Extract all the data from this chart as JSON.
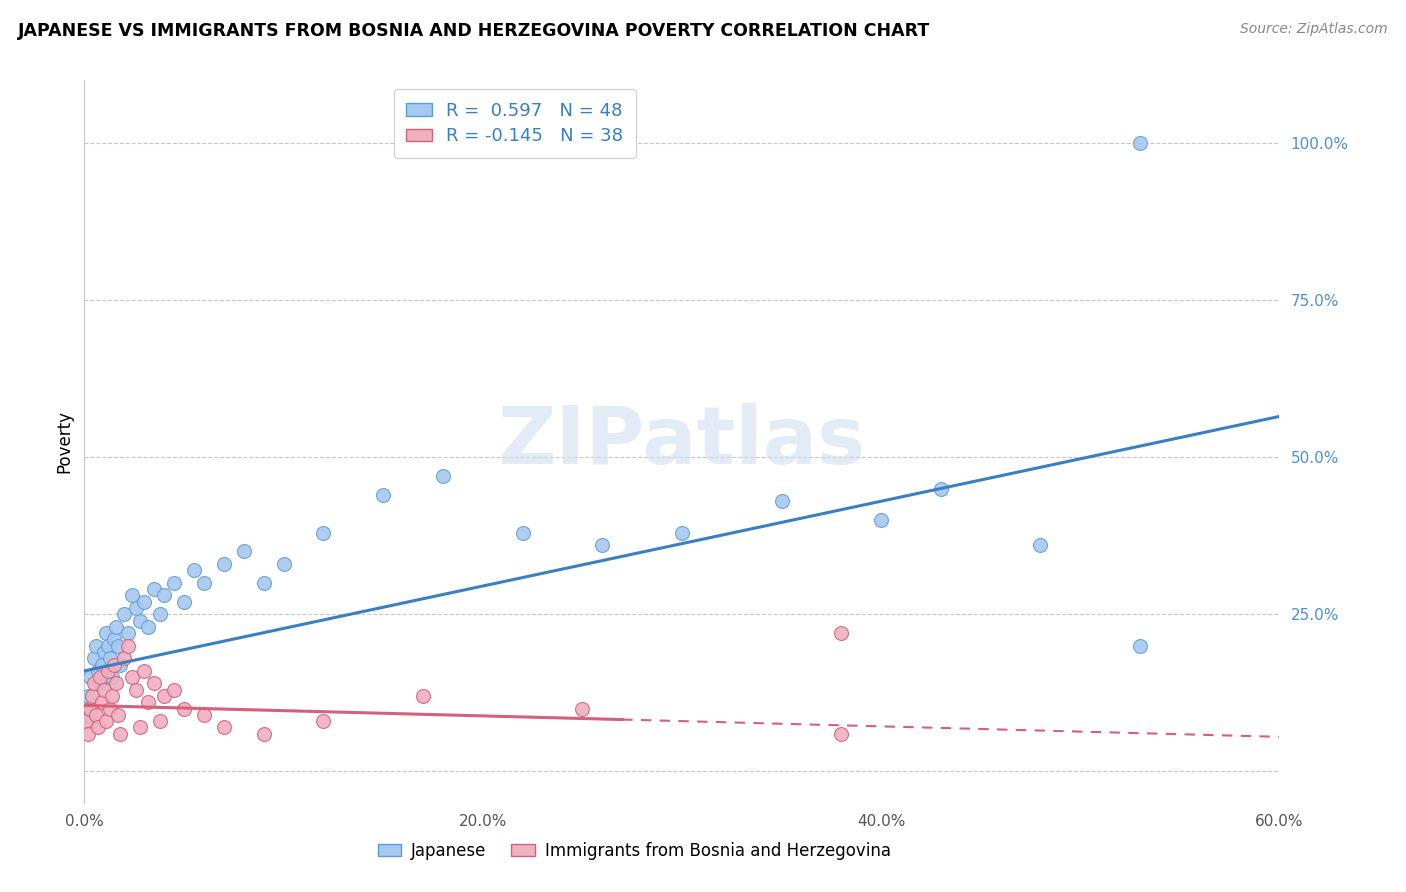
{
  "title": "JAPANESE VS IMMIGRANTS FROM BOSNIA AND HERZEGOVINA POVERTY CORRELATION CHART",
  "source": "Source: ZipAtlas.com",
  "ylabel": "Poverty",
  "xlim": [
    0.0,
    0.6
  ],
  "ylim": [
    -0.05,
    1.1
  ],
  "xtick_positions": [
    0.0,
    0.1,
    0.2,
    0.3,
    0.4,
    0.5,
    0.6
  ],
  "xticklabels": [
    "0.0%",
    "",
    "20.0%",
    "",
    "40.0%",
    "",
    "60.0%"
  ],
  "ytick_positions": [
    0.0,
    0.25,
    0.5,
    0.75,
    1.0
  ],
  "ytick_labels": [
    "",
    "25.0%",
    "50.0%",
    "75.0%",
    "100.0%"
  ],
  "japanese_scatter_color": "#a8c8f0",
  "japanese_scatter_edge": "#5a9fd4",
  "bosnian_scatter_color": "#f0b0c0",
  "bosnian_scatter_edge": "#d4607a",
  "japanese_line_color": "#3a7fc1",
  "bosnian_line_color": "#d4607a",
  "R_japanese": 0.597,
  "N_japanese": 48,
  "R_bosnian": -0.145,
  "N_bosnian": 38,
  "watermark_text": "ZIPatlas",
  "legend_label_japanese": "Japanese",
  "legend_label_bosnian": "Immigrants from Bosnia and Herzegovina",
  "japanese_x": [
    0.001,
    0.002,
    0.003,
    0.004,
    0.005,
    0.006,
    0.007,
    0.008,
    0.009,
    0.01,
    0.011,
    0.012,
    0.013,
    0.014,
    0.015,
    0.016,
    0.017,
    0.018,
    0.02,
    0.022,
    0.024,
    0.026,
    0.028,
    0.03,
    0.032,
    0.035,
    0.038,
    0.04,
    0.045,
    0.05,
    0.055,
    0.06,
    0.07,
    0.08,
    0.09,
    0.1,
    0.12,
    0.15,
    0.18,
    0.22,
    0.26,
    0.3,
    0.35,
    0.4,
    0.43,
    0.48,
    0.53,
    0.53
  ],
  "japanese_y": [
    0.1,
    0.12,
    0.15,
    0.08,
    0.18,
    0.2,
    0.16,
    0.14,
    0.17,
    0.19,
    0.22,
    0.2,
    0.18,
    0.15,
    0.21,
    0.23,
    0.2,
    0.17,
    0.25,
    0.22,
    0.28,
    0.26,
    0.24,
    0.27,
    0.23,
    0.29,
    0.25,
    0.28,
    0.3,
    0.27,
    0.32,
    0.3,
    0.33,
    0.35,
    0.3,
    0.33,
    0.38,
    0.44,
    0.47,
    0.38,
    0.36,
    0.38,
    0.43,
    0.4,
    0.45,
    0.36,
    0.2,
    1.0
  ],
  "bosnian_x": [
    0.001,
    0.002,
    0.003,
    0.004,
    0.005,
    0.006,
    0.007,
    0.008,
    0.009,
    0.01,
    0.011,
    0.012,
    0.013,
    0.014,
    0.015,
    0.016,
    0.017,
    0.018,
    0.02,
    0.022,
    0.024,
    0.026,
    0.028,
    0.03,
    0.032,
    0.035,
    0.038,
    0.04,
    0.045,
    0.05,
    0.06,
    0.07,
    0.09,
    0.12,
    0.17,
    0.25,
    0.38,
    0.38
  ],
  "bosnian_y": [
    0.08,
    0.06,
    0.1,
    0.12,
    0.14,
    0.09,
    0.07,
    0.15,
    0.11,
    0.13,
    0.08,
    0.16,
    0.1,
    0.12,
    0.17,
    0.14,
    0.09,
    0.06,
    0.18,
    0.2,
    0.15,
    0.13,
    0.07,
    0.16,
    0.11,
    0.14,
    0.08,
    0.12,
    0.13,
    0.1,
    0.09,
    0.07,
    0.06,
    0.08,
    0.12,
    0.1,
    0.06,
    0.22
  ],
  "line_j_x0": 0.0,
  "line_j_y0": 0.16,
  "line_j_x1": 0.6,
  "line_j_y1": 0.565,
  "line_b_x0": 0.0,
  "line_b_y0": 0.105,
  "line_b_x1": 0.6,
  "line_b_y1": 0.055,
  "line_b_dash_x0": 0.27,
  "line_b_dash_x1": 0.6
}
